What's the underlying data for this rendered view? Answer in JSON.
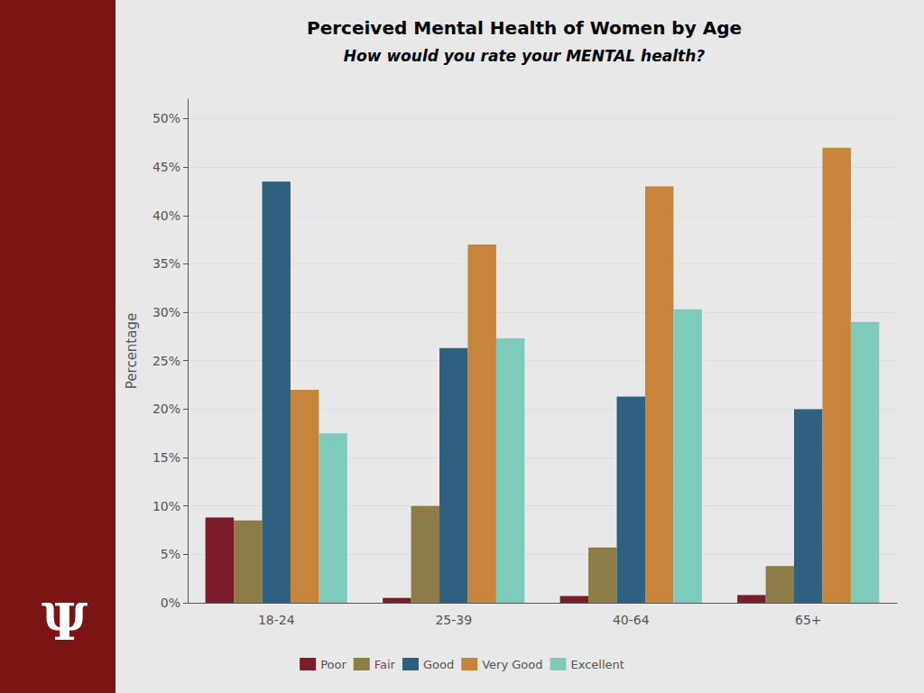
{
  "chart_data": {
    "type": "bar",
    "title": "Perceived Mental Health of Women by Age",
    "subtitle": "How would you rate your MENTAL health?",
    "annotations": [
      "Ψ"
    ],
    "categories": [
      "18-24",
      "25-39",
      "40-64",
      "65+"
    ],
    "series": [
      {
        "name": "Poor",
        "color": "#7b1c2b",
        "values": [
          8.8,
          0.5,
          0.7,
          0.8
        ]
      },
      {
        "name": "Fair",
        "color": "#8b7d45",
        "values": [
          8.5,
          10.0,
          5.7,
          3.8
        ]
      },
      {
        "name": "Good",
        "color": "#2e6080",
        "values": [
          43.5,
          26.3,
          21.3,
          20.0
        ]
      },
      {
        "name": "Very Good",
        "color": "#c8843a",
        "values": [
          22.0,
          37.0,
          43.0,
          47.0
        ]
      },
      {
        "name": "Excellent",
        "color": "#7ecbbc",
        "values": [
          17.5,
          27.3,
          30.3,
          29.0
        ]
      }
    ],
    "ylabel": "Percentage",
    "ylim": [
      0,
      52
    ],
    "yticks": [
      {
        "value": 0,
        "label": "0%"
      },
      {
        "value": 5,
        "label": "5%"
      },
      {
        "value": 10,
        "label": "10%"
      },
      {
        "value": 15,
        "label": "15%"
      },
      {
        "value": 20,
        "label": "20%"
      },
      {
        "value": 25,
        "label": "25%"
      },
      {
        "value": 30,
        "label": "30%"
      },
      {
        "value": 35,
        "label": "35%"
      },
      {
        "value": 40,
        "label": "40%"
      },
      {
        "value": 45,
        "label": "45%"
      },
      {
        "value": 50,
        "label": "50%"
      }
    ],
    "grid": true,
    "legend": "bottom"
  }
}
